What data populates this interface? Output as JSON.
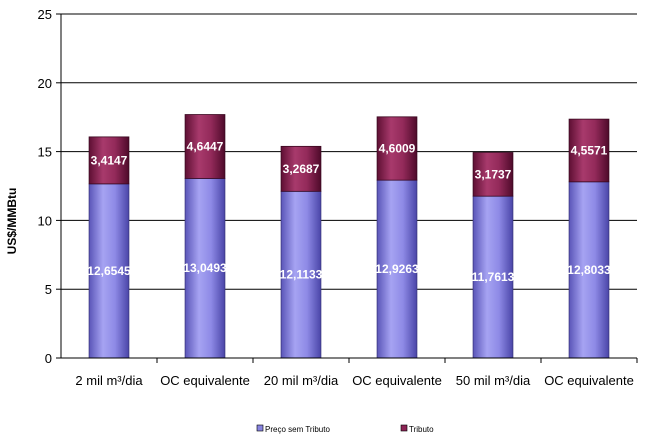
{
  "chart_data": {
    "type": "bar",
    "stacked": true,
    "categories": [
      "2 mil m³/dia",
      "OC equivalente",
      "20 mil m³/dia",
      "OC equivalente",
      "50 mil m³/dia",
      "OC equivalente"
    ],
    "series": [
      {
        "name": "Preço sem Tributo",
        "values": [
          12.6545,
          13.0493,
          12.1133,
          12.9263,
          11.7613,
          12.8033
        ],
        "labels": [
          "12,6545",
          "13,0493",
          "12,1133",
          "12,9263",
          "11,7613",
          "12,8033"
        ],
        "color": "#8884e0"
      },
      {
        "name": "Tributo",
        "values": [
          3.4147,
          4.6447,
          3.2687,
          4.6009,
          3.1737,
          4.5571
        ],
        "labels": [
          "3,4147",
          "4,6447",
          "3,2687",
          "4,6009",
          "3,1737",
          "4,5571"
        ],
        "color": "#8c2455"
      }
    ],
    "title": "",
    "xlabel": "",
    "ylabel": "US$/MMBtu",
    "ylim": [
      0,
      25
    ],
    "yticks": [
      0,
      5,
      10,
      15,
      20,
      25
    ],
    "grid": true,
    "legend": "bottom"
  }
}
